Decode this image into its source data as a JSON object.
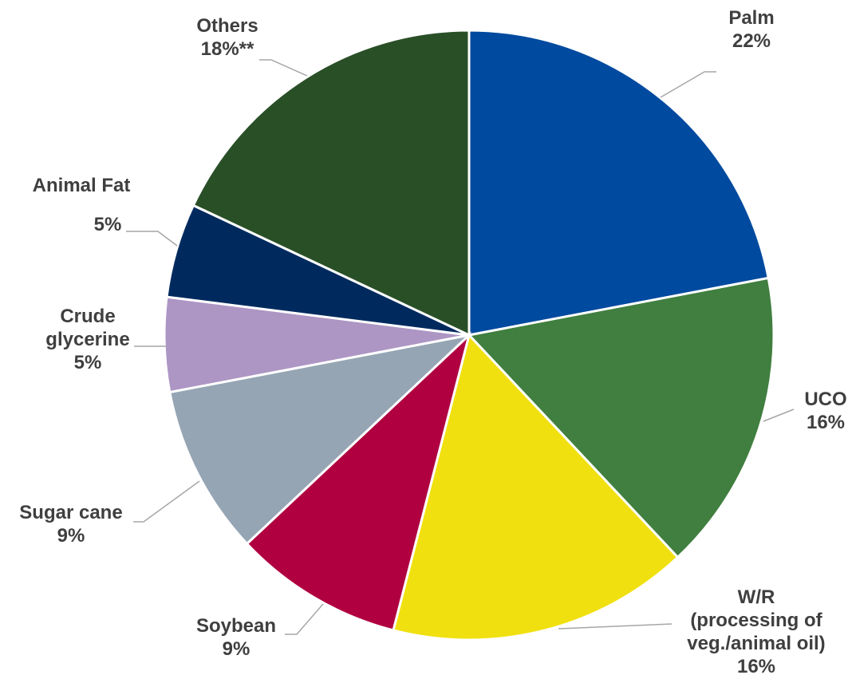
{
  "chart_data": {
    "type": "pie",
    "title": "",
    "legend": "none",
    "slices": [
      {
        "name": "Palm",
        "lines": [
          "Palm"
        ],
        "value": 22,
        "pct_label": "22%",
        "color": "#004a9f"
      },
      {
        "name": "UCO",
        "lines": [
          "UCO"
        ],
        "value": 16,
        "pct_label": "16%",
        "color": "#407f3f"
      },
      {
        "name": "W/R (processing of veg./animal oil)",
        "lines": [
          "W/R",
          "(processing of",
          "veg./animal oil)"
        ],
        "value": 16,
        "pct_label": "16%",
        "color": "#f0e010"
      },
      {
        "name": "Soybean",
        "lines": [
          "Soybean"
        ],
        "value": 9,
        "pct_label": "9%",
        "color": "#b00040"
      },
      {
        "name": "Sugar cane",
        "lines": [
          "Sugar cane"
        ],
        "value": 9,
        "pct_label": "9%",
        "color": "#95a5b4"
      },
      {
        "name": "Crude glycerine",
        "lines": [
          "Crude",
          "glycerine"
        ],
        "value": 5,
        "pct_label": "5%",
        "color": "#ad96c4"
      },
      {
        "name": "Animal  Fat",
        "lines": [
          "Animal  Fat"
        ],
        "value": 5,
        "pct_label": "5%",
        "color": "#002a5e"
      },
      {
        "name": "Others",
        "lines": [
          "Others"
        ],
        "value": 18,
        "pct_label": "18%**",
        "color": "#294f27"
      }
    ]
  }
}
